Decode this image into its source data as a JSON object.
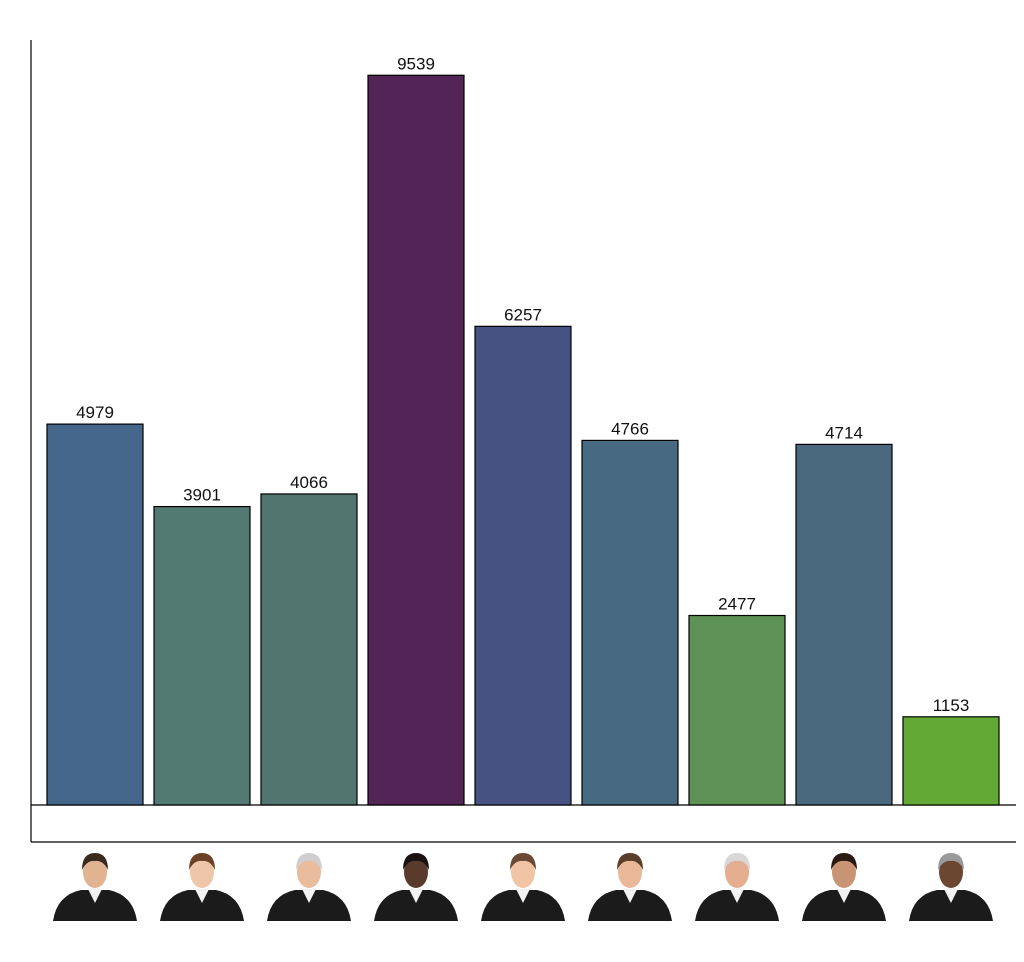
{
  "chart_data": {
    "type": "bar",
    "categories": [
      null,
      null,
      null,
      null,
      null,
      null,
      null,
      null,
      null
    ],
    "series": [
      {
        "values": [
          4979,
          3901,
          4066,
          9539,
          6257,
          4766,
          2477,
          4714,
          1153
        ],
        "colors": [
          "#44668a",
          "#527a72",
          "#52766f",
          "#532456",
          "#465382",
          "#476a82",
          "#5e9155",
          "#4a697f",
          "#62aa35"
        ]
      }
    ],
    "ylim": [
      0,
      10000
    ]
  }
}
